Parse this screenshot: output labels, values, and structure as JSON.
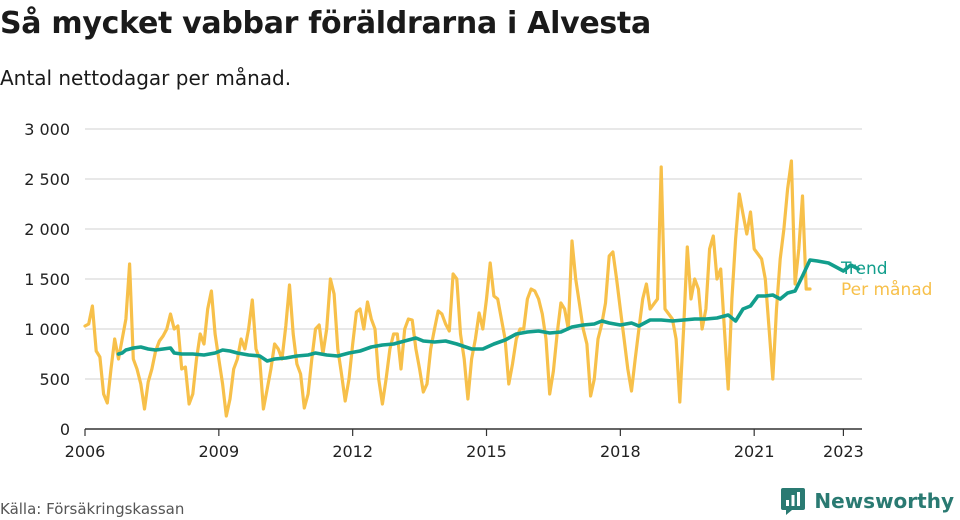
{
  "title": "Så mycket vabbar föräldrarna i Alvesta",
  "subtitle": "Antal nettodagar per månad.",
  "source": "Källa: Försäkringskassan",
  "brand": {
    "name": "Newsworthy",
    "icon": "newsworthy-logo-icon"
  },
  "colors": {
    "trend": "#129e8c",
    "monthly": "#f7c04a",
    "grid": "#d9d9d9",
    "axis": "#333333"
  },
  "chart_data": {
    "type": "line",
    "title": "Så mycket vabbar föräldrarna i Alvesta",
    "subtitle": "Antal nettodagar per månad.",
    "xlim": [
      "2006-01",
      "2023-06"
    ],
    "ylim": [
      0,
      3000
    ],
    "y_ticks": [
      0,
      500,
      1000,
      1500,
      2000,
      2500,
      3000
    ],
    "y_tick_labels": [
      "0",
      "500",
      "1 000",
      "1 500",
      "2 000",
      "2 500",
      "3 000"
    ],
    "x_ticks": [
      "2006-01",
      "2009-01",
      "2012-01",
      "2015-01",
      "2018-01",
      "2021-01",
      "2023-01"
    ],
    "x_tick_labels": [
      "2006",
      "2009",
      "2012",
      "2015",
      "2018",
      "2021",
      "2023"
    ],
    "grid": true,
    "legend": "right, at line ends",
    "series": [
      {
        "name": "Trend",
        "color": "#129e8c",
        "points": [
          [
            "2006-10",
            750
          ],
          [
            "2006-11",
            760
          ],
          [
            "2006-12",
            790
          ],
          [
            "2007-02",
            810
          ],
          [
            "2007-04",
            820
          ],
          [
            "2007-06",
            800
          ],
          [
            "2007-08",
            790
          ],
          [
            "2007-10",
            800
          ],
          [
            "2007-12",
            810
          ],
          [
            "2008-01",
            760
          ],
          [
            "2008-03",
            750
          ],
          [
            "2008-06",
            750
          ],
          [
            "2008-09",
            740
          ],
          [
            "2008-12",
            760
          ],
          [
            "2009-02",
            790
          ],
          [
            "2009-04",
            780
          ],
          [
            "2009-06",
            760
          ],
          [
            "2009-09",
            740
          ],
          [
            "2009-12",
            730
          ],
          [
            "2010-02",
            680
          ],
          [
            "2010-04",
            700
          ],
          [
            "2010-07",
            710
          ],
          [
            "2010-10",
            730
          ],
          [
            "2011-01",
            740
          ],
          [
            "2011-03",
            760
          ],
          [
            "2011-06",
            740
          ],
          [
            "2011-09",
            730
          ],
          [
            "2011-12",
            760
          ],
          [
            "2012-03",
            780
          ],
          [
            "2012-06",
            820
          ],
          [
            "2012-09",
            840
          ],
          [
            "2012-12",
            850
          ],
          [
            "2013-03",
            880
          ],
          [
            "2013-06",
            910
          ],
          [
            "2013-08",
            880
          ],
          [
            "2013-11",
            870
          ],
          [
            "2014-02",
            880
          ],
          [
            "2014-05",
            850
          ],
          [
            "2014-09",
            800
          ],
          [
            "2014-12",
            800
          ],
          [
            "2015-03",
            850
          ],
          [
            "2015-06",
            890
          ],
          [
            "2015-09",
            950
          ],
          [
            "2015-12",
            970
          ],
          [
            "2016-03",
            980
          ],
          [
            "2016-06",
            960
          ],
          [
            "2016-09",
            970
          ],
          [
            "2016-12",
            1020
          ],
          [
            "2017-03",
            1040
          ],
          [
            "2017-06",
            1050
          ],
          [
            "2017-08",
            1080
          ],
          [
            "2017-10",
            1060
          ],
          [
            "2018-01",
            1040
          ],
          [
            "2018-04",
            1060
          ],
          [
            "2018-06",
            1030
          ],
          [
            "2018-09",
            1090
          ],
          [
            "2018-12",
            1090
          ],
          [
            "2019-03",
            1080
          ],
          [
            "2019-06",
            1090
          ],
          [
            "2019-09",
            1100
          ],
          [
            "2019-12",
            1100
          ],
          [
            "2020-03",
            1110
          ],
          [
            "2020-06",
            1140
          ],
          [
            "2020-08",
            1080
          ],
          [
            "2020-10",
            1200
          ],
          [
            "2020-12",
            1230
          ],
          [
            "2021-02",
            1330
          ],
          [
            "2021-04",
            1330
          ],
          [
            "2021-06",
            1340
          ],
          [
            "2021-08",
            1300
          ],
          [
            "2021-10",
            1360
          ],
          [
            "2021-12",
            1380
          ],
          [
            "2022-02",
            1530
          ],
          [
            "2022-04",
            1690
          ],
          [
            "2022-06",
            1680
          ],
          [
            "2022-09",
            1660
          ],
          [
            "2022-11",
            1620
          ],
          [
            "2023-01",
            1580
          ],
          [
            "2023-03",
            1640
          ],
          [
            "2023-05",
            1600
          ]
        ]
      },
      {
        "name": "Per månad",
        "color": "#f7c04a",
        "points": [
          [
            "2006-01",
            1030
          ],
          [
            "2006-02",
            1050
          ],
          [
            "2006-03",
            1230
          ],
          [
            "2006-04",
            780
          ],
          [
            "2006-05",
            720
          ],
          [
            "2006-06",
            350
          ],
          [
            "2006-07",
            260
          ],
          [
            "2006-08",
            600
          ],
          [
            "2006-09",
            900
          ],
          [
            "2006-10",
            700
          ],
          [
            "2006-11",
            900
          ],
          [
            "2006-12",
            1100
          ],
          [
            "2007-01",
            1650
          ],
          [
            "2007-02",
            700
          ],
          [
            "2007-03",
            600
          ],
          [
            "2007-04",
            450
          ],
          [
            "2007-05",
            200
          ],
          [
            "2007-06",
            470
          ],
          [
            "2007-07",
            600
          ],
          [
            "2007-08",
            780
          ],
          [
            "2007-09",
            880
          ],
          [
            "2007-10",
            930
          ],
          [
            "2007-11",
            1000
          ],
          [
            "2007-12",
            1150
          ],
          [
            "2008-01",
            1000
          ],
          [
            "2008-02",
            1030
          ],
          [
            "2008-03",
            600
          ],
          [
            "2008-04",
            620
          ],
          [
            "2008-05",
            250
          ],
          [
            "2008-06",
            350
          ],
          [
            "2008-07",
            700
          ],
          [
            "2008-08",
            950
          ],
          [
            "2008-09",
            850
          ],
          [
            "2008-10",
            1200
          ],
          [
            "2008-11",
            1380
          ],
          [
            "2008-12",
            950
          ],
          [
            "2009-01",
            700
          ],
          [
            "2009-02",
            450
          ],
          [
            "2009-03",
            130
          ],
          [
            "2009-04",
            300
          ],
          [
            "2009-05",
            600
          ],
          [
            "2009-06",
            700
          ],
          [
            "2009-07",
            900
          ],
          [
            "2009-08",
            800
          ],
          [
            "2009-09",
            1000
          ],
          [
            "2009-10",
            1290
          ],
          [
            "2009-11",
            800
          ],
          [
            "2009-12",
            700
          ],
          [
            "2010-01",
            200
          ],
          [
            "2010-02",
            400
          ],
          [
            "2010-03",
            600
          ],
          [
            "2010-04",
            850
          ],
          [
            "2010-05",
            800
          ],
          [
            "2010-06",
            700
          ],
          [
            "2010-07",
            1030
          ],
          [
            "2010-08",
            1440
          ],
          [
            "2010-09",
            950
          ],
          [
            "2010-10",
            650
          ],
          [
            "2010-11",
            550
          ],
          [
            "2010-12",
            210
          ],
          [
            "2011-01",
            350
          ],
          [
            "2011-02",
            700
          ],
          [
            "2011-03",
            1000
          ],
          [
            "2011-04",
            1040
          ],
          [
            "2011-05",
            750
          ],
          [
            "2011-06",
            1000
          ],
          [
            "2011-07",
            1500
          ],
          [
            "2011-08",
            1350
          ],
          [
            "2011-09",
            800
          ],
          [
            "2011-10",
            550
          ],
          [
            "2011-11",
            280
          ],
          [
            "2011-12",
            500
          ],
          [
            "2012-01",
            850
          ],
          [
            "2012-02",
            1170
          ],
          [
            "2012-03",
            1200
          ],
          [
            "2012-04",
            1000
          ],
          [
            "2012-05",
            1270
          ],
          [
            "2012-06",
            1100
          ],
          [
            "2012-07",
            1000
          ],
          [
            "2012-08",
            500
          ],
          [
            "2012-09",
            250
          ],
          [
            "2012-10",
            500
          ],
          [
            "2012-11",
            800
          ],
          [
            "2012-12",
            950
          ],
          [
            "2013-01",
            950
          ],
          [
            "2013-02",
            600
          ],
          [
            "2013-03",
            1000
          ],
          [
            "2013-04",
            1100
          ],
          [
            "2013-05",
            1090
          ],
          [
            "2013-06",
            800
          ],
          [
            "2013-07",
            600
          ],
          [
            "2013-08",
            370
          ],
          [
            "2013-09",
            450
          ],
          [
            "2013-10",
            800
          ],
          [
            "2013-11",
            1000
          ],
          [
            "2013-12",
            1180
          ],
          [
            "2014-01",
            1150
          ],
          [
            "2014-02",
            1050
          ],
          [
            "2014-03",
            980
          ],
          [
            "2014-04",
            1550
          ],
          [
            "2014-05",
            1500
          ],
          [
            "2014-06",
            950
          ],
          [
            "2014-07",
            700
          ],
          [
            "2014-08",
            300
          ],
          [
            "2014-09",
            700
          ],
          [
            "2014-10",
            900
          ],
          [
            "2014-11",
            1160
          ],
          [
            "2014-12",
            1000
          ],
          [
            "2015-01",
            1300
          ],
          [
            "2015-02",
            1660
          ],
          [
            "2015-03",
            1330
          ],
          [
            "2015-04",
            1300
          ],
          [
            "2015-05",
            1100
          ],
          [
            "2015-06",
            900
          ],
          [
            "2015-07",
            450
          ],
          [
            "2015-08",
            650
          ],
          [
            "2015-09",
            900
          ],
          [
            "2015-10",
            1000
          ],
          [
            "2015-11",
            1000
          ],
          [
            "2015-12",
            1300
          ],
          [
            "2016-01",
            1400
          ],
          [
            "2016-02",
            1380
          ],
          [
            "2016-03",
            1300
          ],
          [
            "2016-04",
            1150
          ],
          [
            "2016-05",
            900
          ],
          [
            "2016-06",
            350
          ],
          [
            "2016-07",
            580
          ],
          [
            "2016-08",
            950
          ],
          [
            "2016-09",
            1260
          ],
          [
            "2016-10",
            1200
          ],
          [
            "2016-11",
            1000
          ],
          [
            "2016-12",
            1880
          ],
          [
            "2017-01",
            1500
          ],
          [
            "2017-02",
            1250
          ],
          [
            "2017-03",
            1000
          ],
          [
            "2017-04",
            850
          ],
          [
            "2017-05",
            330
          ],
          [
            "2017-06",
            500
          ],
          [
            "2017-07",
            900
          ],
          [
            "2017-08",
            1050
          ],
          [
            "2017-09",
            1260
          ],
          [
            "2017-10",
            1730
          ],
          [
            "2017-11",
            1770
          ],
          [
            "2017-12",
            1500
          ],
          [
            "2018-01",
            1200
          ],
          [
            "2018-02",
            900
          ],
          [
            "2018-03",
            600
          ],
          [
            "2018-04",
            380
          ],
          [
            "2018-05",
            700
          ],
          [
            "2018-06",
            1000
          ],
          [
            "2018-07",
            1300
          ],
          [
            "2018-08",
            1450
          ],
          [
            "2018-09",
            1200
          ],
          [
            "2018-10",
            1250
          ],
          [
            "2018-11",
            1300
          ],
          [
            "2018-12",
            2620
          ],
          [
            "2019-01",
            1200
          ],
          [
            "2019-02",
            1150
          ],
          [
            "2019-03",
            1100
          ],
          [
            "2019-04",
            900
          ],
          [
            "2019-05",
            270
          ],
          [
            "2019-06",
            1000
          ],
          [
            "2019-07",
            1820
          ],
          [
            "2019-08",
            1300
          ],
          [
            "2019-09",
            1500
          ],
          [
            "2019-10",
            1400
          ],
          [
            "2019-11",
            1000
          ],
          [
            "2019-12",
            1200
          ],
          [
            "2020-01",
            1800
          ],
          [
            "2020-02",
            1930
          ],
          [
            "2020-03",
            1500
          ],
          [
            "2020-04",
            1600
          ],
          [
            "2020-05",
            1000
          ],
          [
            "2020-06",
            400
          ],
          [
            "2020-07",
            1300
          ],
          [
            "2020-08",
            1900
          ],
          [
            "2020-09",
            2350
          ],
          [
            "2020-10",
            2150
          ],
          [
            "2020-11",
            1950
          ],
          [
            "2020-12",
            2170
          ],
          [
            "2021-01",
            1800
          ],
          [
            "2021-02",
            1750
          ],
          [
            "2021-03",
            1700
          ],
          [
            "2021-04",
            1500
          ],
          [
            "2021-05",
            1000
          ],
          [
            "2021-06",
            500
          ],
          [
            "2021-07",
            1200
          ],
          [
            "2021-08",
            1700
          ],
          [
            "2021-09",
            2000
          ],
          [
            "2021-10",
            2400
          ],
          [
            "2021-11",
            2680
          ],
          [
            "2021-12",
            1450
          ],
          [
            "2022-01",
            1800
          ],
          [
            "2022-02",
            2330
          ],
          [
            "2022-03",
            1400
          ],
          [
            "2022-04",
            1400
          ]
        ]
      }
    ]
  }
}
